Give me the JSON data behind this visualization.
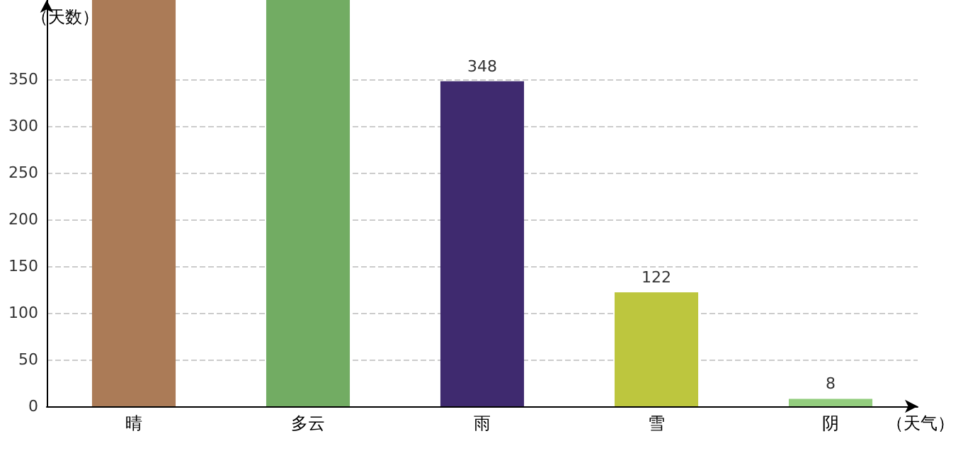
{
  "chart_data": {
    "type": "bar",
    "xlabel": "（天气）",
    "ylabel": "（天数）",
    "categories": [
      "晴",
      "多云",
      "雨",
      "雪",
      "阴"
    ],
    "values": [
      435,
      435,
      348,
      122,
      8
    ],
    "colors": [
      "#ab7b57",
      "#72ac63",
      "#3f2a6f",
      "#bdc63e",
      "#93cd7e"
    ],
    "value_labels": [
      null,
      null,
      "348",
      "122",
      "8"
    ],
    "ylim": [
      0,
      435
    ],
    "yticks": [
      0,
      50,
      100,
      150,
      200,
      250,
      300,
      350
    ],
    "grid": "y"
  }
}
